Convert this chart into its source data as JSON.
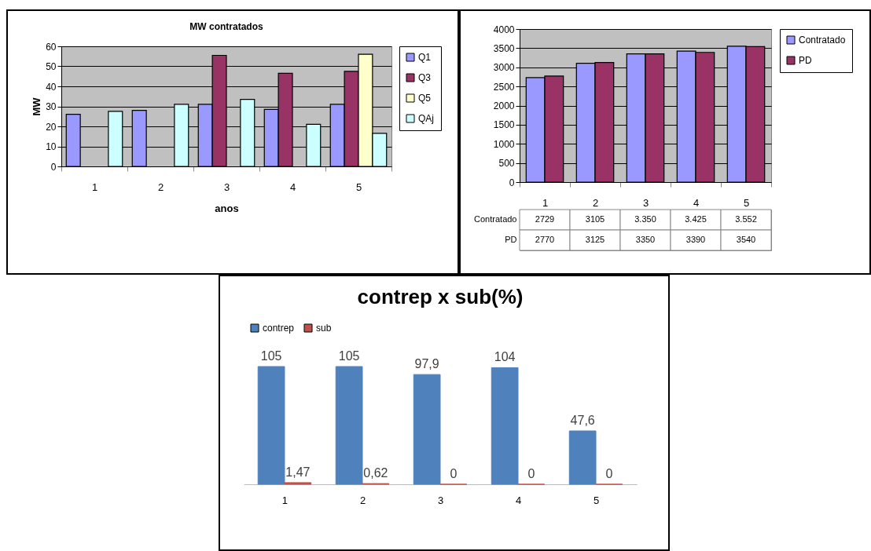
{
  "chart_data": [
    {
      "type": "bar",
      "title": "MW contratados",
      "xlabel": "anos",
      "ylabel": "MW",
      "categories": [
        "1",
        "2",
        "3",
        "4",
        "5"
      ],
      "series": [
        {
          "name": "Q1",
          "color": "#9999ff",
          "values": [
            26,
            28,
            31,
            28.5,
            31
          ]
        },
        {
          "name": "Q3",
          "color": "#993366",
          "values": [
            null,
            null,
            55.5,
            46.5,
            47.5
          ]
        },
        {
          "name": "Q5",
          "color": "#ffffcc",
          "values": [
            null,
            null,
            null,
            null,
            56
          ]
        },
        {
          "name": "QAj",
          "color": "#ccffff",
          "values": [
            27.5,
            31,
            33.5,
            21,
            16.5
          ]
        }
      ],
      "ylim": [
        0,
        60
      ],
      "yticks": [
        0,
        10,
        20,
        30,
        40,
        50,
        60
      ],
      "grid": "y",
      "legend": "right"
    },
    {
      "type": "bar",
      "categories": [
        "1",
        "2",
        "3",
        "4",
        "5"
      ],
      "series": [
        {
          "name": "Contratado",
          "color": "#9999ff",
          "values": [
            2729,
            3105,
            3350,
            3425,
            3552
          ],
          "value_labels": [
            "2729",
            "3105",
            "3.350",
            "3.425",
            "3.552"
          ]
        },
        {
          "name": "PD",
          "color": "#993366",
          "values": [
            2770,
            3125,
            3350,
            3390,
            3540
          ],
          "value_labels": [
            "2770",
            "3125",
            "3350",
            "3390",
            "3540"
          ]
        }
      ],
      "ylim": [
        0,
        4000
      ],
      "yticks": [
        0,
        500,
        1000,
        1500,
        2000,
        2500,
        3000,
        3500,
        4000
      ],
      "grid": "y",
      "legend": "right"
    },
    {
      "type": "bar",
      "title": "contrep x sub(%)",
      "categories": [
        "1",
        "2",
        "3",
        "4",
        "5"
      ],
      "series": [
        {
          "name": "contrep",
          "color": "#4f81bd",
          "values": [
            105,
            105,
            97.9,
            104,
            47.6
          ],
          "value_labels": [
            "105",
            "105",
            "97,9",
            "104",
            "47,6"
          ]
        },
        {
          "name": "sub",
          "color": "#c0504d",
          "values": [
            1.47,
            0.62,
            0,
            0,
            0
          ],
          "value_labels": [
            "1,47",
            "0,62",
            "0",
            "0",
            "0"
          ]
        }
      ],
      "legend": "top",
      "tick_labels": "x"
    }
  ]
}
